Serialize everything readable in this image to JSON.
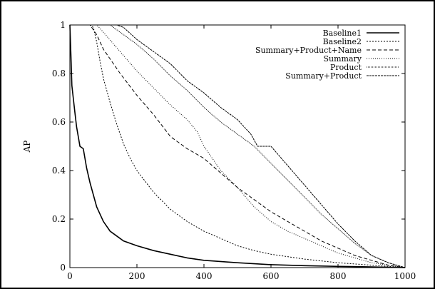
{
  "chart_data": {
    "type": "line",
    "title": "",
    "xlabel": "",
    "ylabel": "AP",
    "xlim": [
      0,
      1000
    ],
    "ylim": [
      0,
      1
    ],
    "xticks": [
      0,
      200,
      400,
      600,
      800,
      1000
    ],
    "yticks": [
      0,
      0.2,
      0.4,
      0.6,
      0.8,
      1
    ],
    "xtick_labels": [
      "0",
      "200",
      "400",
      "600",
      "800",
      "1000"
    ],
    "ytick_labels": [
      "0",
      "0.2",
      "0.4",
      "0.6",
      "0.8",
      "1"
    ],
    "grid": false,
    "legend_position": "top-right",
    "series": [
      {
        "name": "Baseline1",
        "dash": "solid",
        "x": [
          0,
          3,
          6,
          10,
          15,
          20,
          30,
          40,
          50,
          60,
          70,
          80,
          90,
          100,
          120,
          140,
          160,
          200,
          250,
          300,
          350,
          400,
          500,
          600,
          700,
          800,
          900,
          1000
        ],
        "y": [
          1.0,
          0.88,
          0.75,
          0.7,
          0.64,
          0.58,
          0.5,
          0.49,
          0.41,
          0.35,
          0.3,
          0.25,
          0.22,
          0.19,
          0.15,
          0.13,
          0.11,
          0.09,
          0.07,
          0.055,
          0.04,
          0.03,
          0.02,
          0.012,
          0.008,
          0.005,
          0.003,
          0.0
        ]
      },
      {
        "name": "Baseline2",
        "dash": "2,2",
        "x": [
          0,
          10,
          20,
          30,
          40,
          50,
          60,
          70,
          80,
          90,
          100,
          120,
          140,
          160,
          180,
          200,
          250,
          300,
          350,
          400,
          450,
          500,
          550,
          600,
          700,
          800,
          900,
          1000
        ],
        "y": [
          1.0,
          1.0,
          1.0,
          1.0,
          1.0,
          1.0,
          1.0,
          0.99,
          0.93,
          0.85,
          0.78,
          0.68,
          0.59,
          0.51,
          0.45,
          0.4,
          0.31,
          0.24,
          0.19,
          0.15,
          0.12,
          0.09,
          0.07,
          0.055,
          0.035,
          0.02,
          0.01,
          0.0
        ]
      },
      {
        "name": "Summary+Product+Name",
        "dash": "5,3",
        "x": [
          0,
          60,
          80,
          100,
          150,
          200,
          250,
          300,
          350,
          400,
          450,
          500,
          550,
          600,
          650,
          700,
          750,
          800,
          850,
          900,
          950,
          1000
        ],
        "y": [
          1.0,
          1.0,
          0.96,
          0.9,
          0.8,
          0.71,
          0.63,
          0.54,
          0.49,
          0.45,
          0.39,
          0.33,
          0.28,
          0.23,
          0.19,
          0.15,
          0.11,
          0.08,
          0.05,
          0.03,
          0.01,
          0.0
        ]
      },
      {
        "name": "Summary",
        "dash": "1,2",
        "x": [
          0,
          60,
          80,
          100,
          150,
          200,
          250,
          300,
          350,
          380,
          400,
          450,
          500,
          550,
          600,
          650,
          700,
          750,
          800,
          850,
          900,
          950,
          1000
        ],
        "y": [
          1.0,
          1.0,
          1.0,
          0.97,
          0.89,
          0.81,
          0.74,
          0.67,
          0.61,
          0.56,
          0.5,
          0.4,
          0.33,
          0.25,
          0.19,
          0.15,
          0.12,
          0.09,
          0.06,
          0.04,
          0.02,
          0.01,
          0.0
        ]
      },
      {
        "name": "Product",
        "dash": "1,1",
        "x": [
          0,
          100,
          120,
          150,
          200,
          250,
          300,
          350,
          400,
          450,
          500,
          550,
          600,
          650,
          700,
          750,
          800,
          850,
          900,
          950,
          1000
        ],
        "y": [
          1.0,
          1.0,
          1.0,
          0.97,
          0.92,
          0.86,
          0.79,
          0.73,
          0.66,
          0.6,
          0.55,
          0.5,
          0.43,
          0.36,
          0.29,
          0.22,
          0.16,
          0.1,
          0.05,
          0.02,
          0.0
        ]
      },
      {
        "name": "Summary+Product",
        "dash": "3,1",
        "x": [
          0,
          120,
          140,
          160,
          200,
          250,
          300,
          350,
          400,
          450,
          500,
          540,
          560,
          580,
          600,
          650,
          700,
          750,
          800,
          850,
          900,
          950,
          1000
        ],
        "y": [
          1.0,
          1.0,
          1.0,
          0.99,
          0.94,
          0.89,
          0.84,
          0.77,
          0.72,
          0.66,
          0.61,
          0.55,
          0.5,
          0.5,
          0.5,
          0.42,
          0.34,
          0.26,
          0.18,
          0.11,
          0.05,
          0.02,
          0.0
        ]
      }
    ]
  }
}
